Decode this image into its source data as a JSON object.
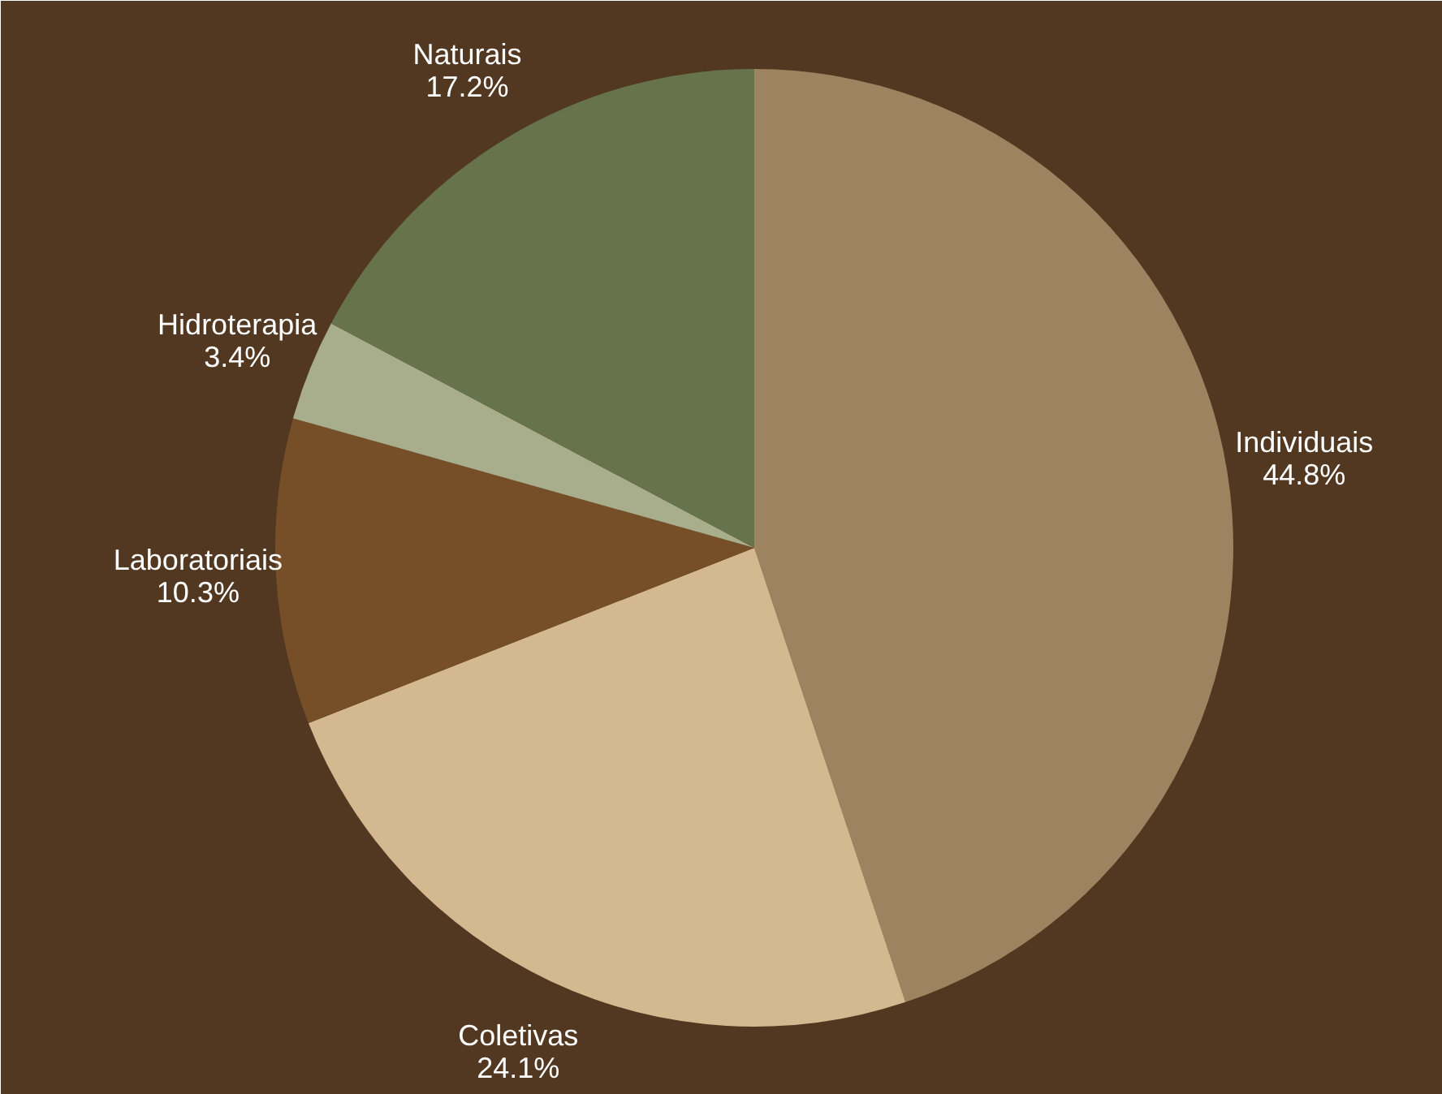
{
  "chart_data": {
    "type": "pie",
    "categories": [
      "Individuais",
      "Coletivas",
      "Laboratoriais",
      "Hidroterapia",
      "Naturais"
    ],
    "values": [
      44.8,
      24.1,
      10.3,
      3.4,
      17.2
    ],
    "colors": [
      "#9e8360",
      "#d4b88f",
      "#764f28",
      "#a8ad8c",
      "#67734b"
    ],
    "value_labels": [
      "44.8%",
      "24.1%",
      "10.3%",
      "3.4%",
      "17.2%"
    ]
  }
}
